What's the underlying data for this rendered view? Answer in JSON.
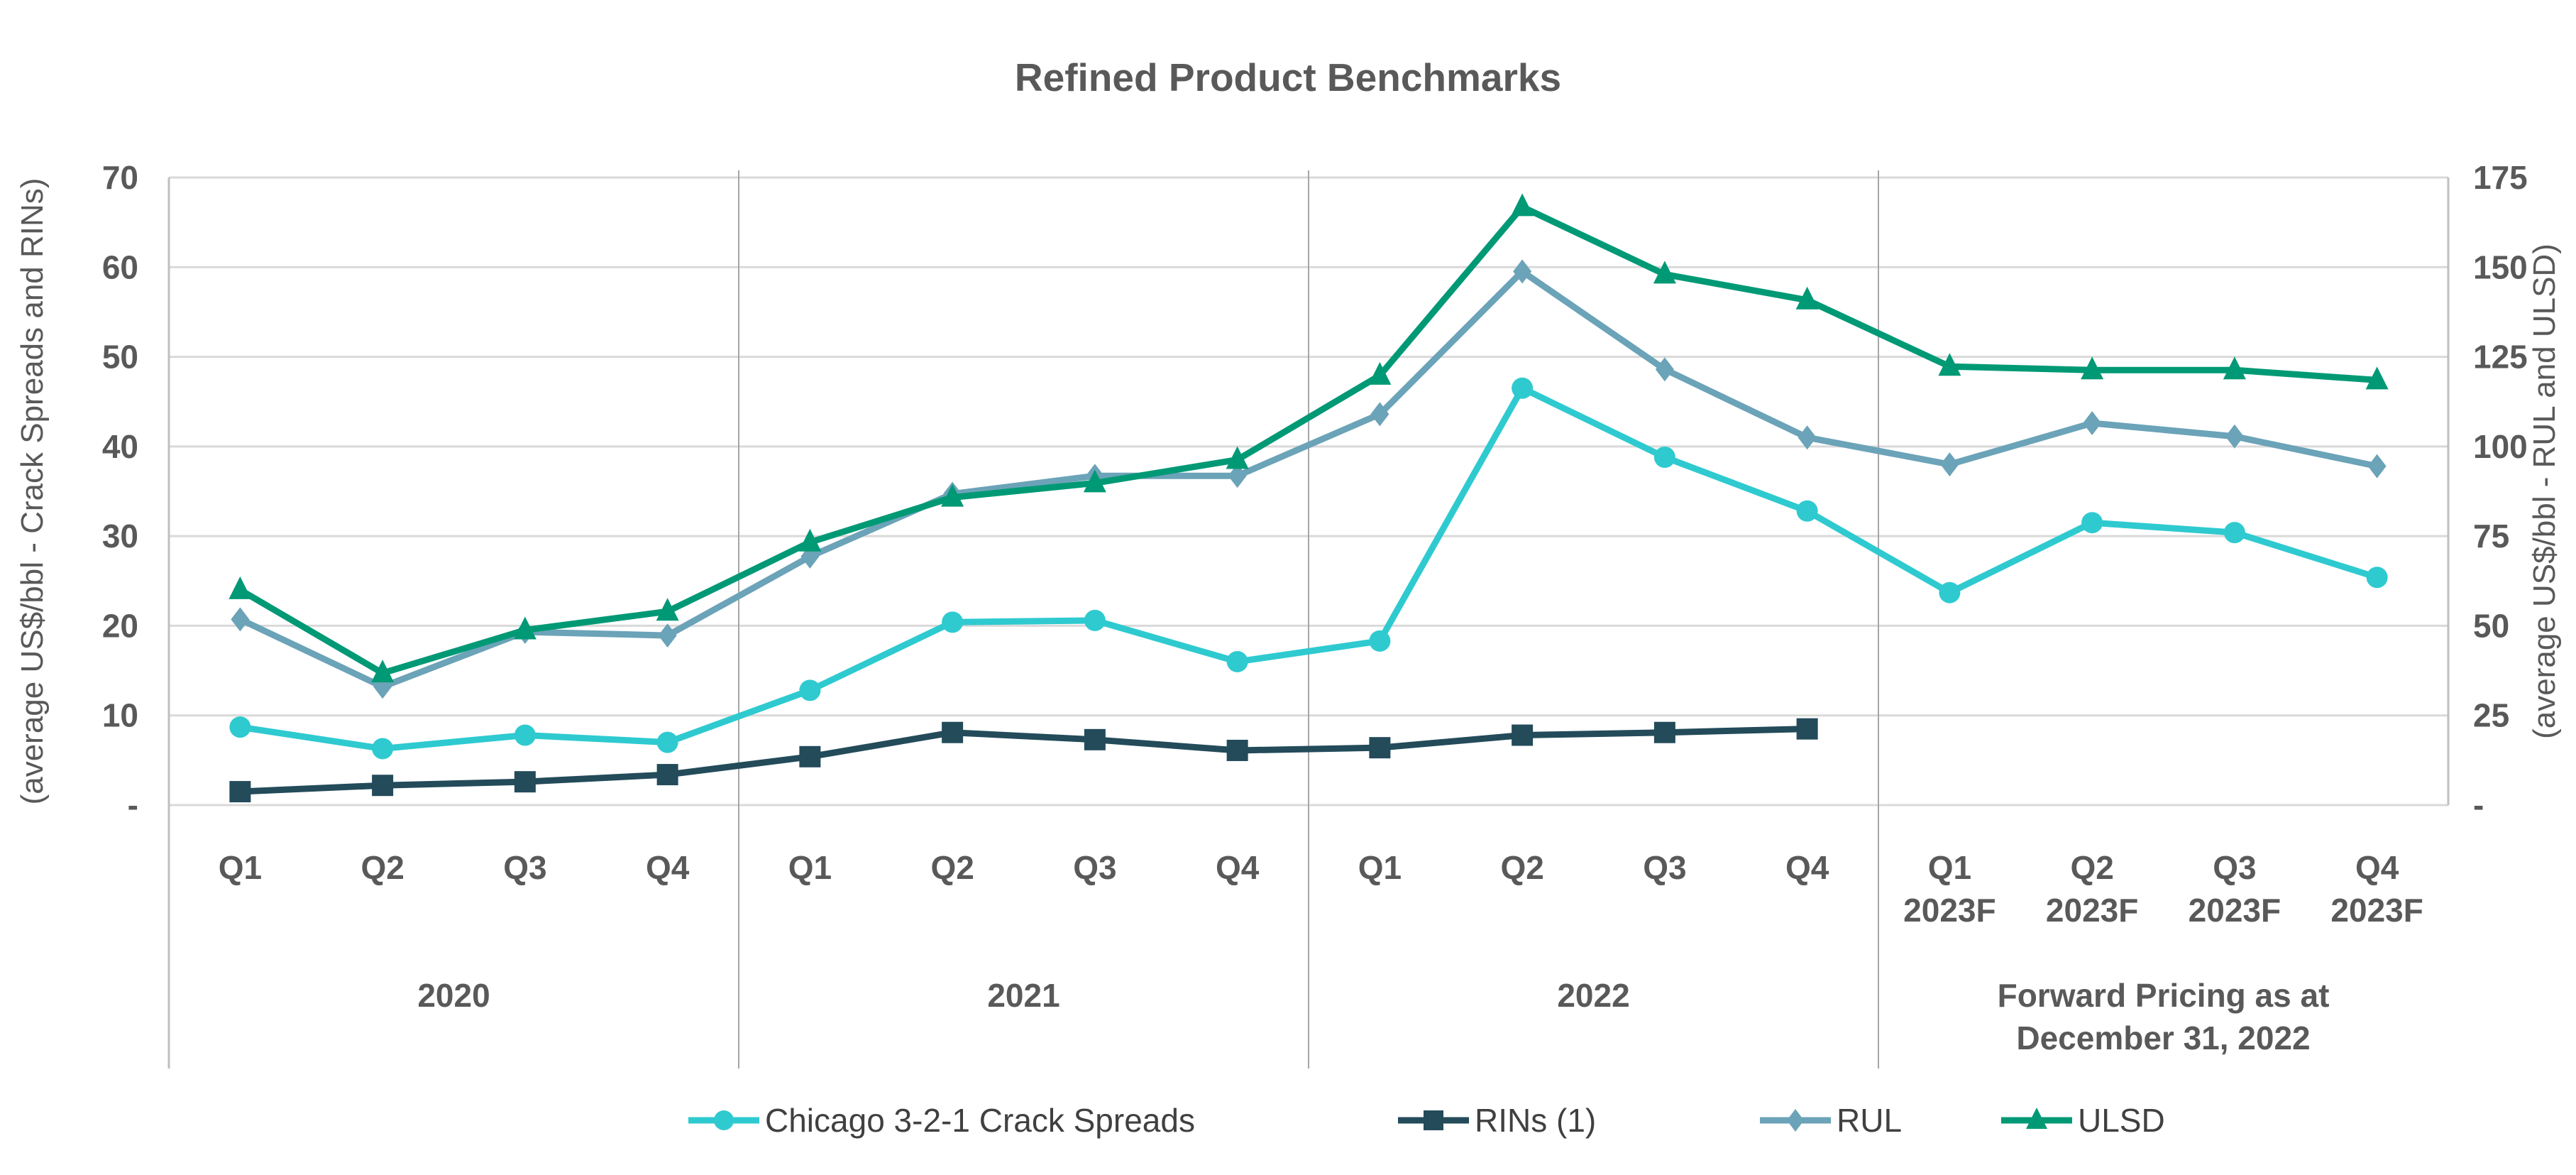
{
  "chart_data": {
    "type": "line",
    "title": "Refined Product Benchmarks",
    "ylabel_left": "(average US$/bbl - Crack Spreads and RINs)",
    "ylabel_right": "(average US$/bbl - RUL and ULSD)",
    "ylim_left": [
      0,
      70
    ],
    "ylim_right": [
      0,
      175
    ],
    "yticks_left": [
      "-",
      "10",
      "20",
      "30",
      "40",
      "50",
      "60",
      "70"
    ],
    "yticks_right": [
      "-",
      "25",
      "50",
      "75",
      "100",
      "125",
      "150",
      "175"
    ],
    "grid": true,
    "legend_position": "bottom",
    "categories": [
      {
        "quarter": "Q1",
        "sub": ""
      },
      {
        "quarter": "Q2",
        "sub": ""
      },
      {
        "quarter": "Q3",
        "sub": ""
      },
      {
        "quarter": "Q4",
        "sub": ""
      },
      {
        "quarter": "Q1",
        "sub": ""
      },
      {
        "quarter": "Q2",
        "sub": ""
      },
      {
        "quarter": "Q3",
        "sub": ""
      },
      {
        "quarter": "Q4",
        "sub": ""
      },
      {
        "quarter": "Q1",
        "sub": ""
      },
      {
        "quarter": "Q2",
        "sub": ""
      },
      {
        "quarter": "Q3",
        "sub": ""
      },
      {
        "quarter": "Q4",
        "sub": ""
      },
      {
        "quarter": "Q1",
        "sub": "2023F"
      },
      {
        "quarter": "Q2",
        "sub": "2023F"
      },
      {
        "quarter": "Q3",
        "sub": "2023F"
      },
      {
        "quarter": "Q4",
        "sub": "2023F"
      }
    ],
    "groups": [
      {
        "label": "2020",
        "label2": ""
      },
      {
        "label": "2021",
        "label2": ""
      },
      {
        "label": "2022",
        "label2": ""
      },
      {
        "label": "Forward Pricing as at",
        "label2": "December 31, 2022"
      }
    ],
    "series": [
      {
        "name": "Chicago 3-2-1 Crack Spreads",
        "axis": "left",
        "color": "#2ECAD0",
        "marker": "circle",
        "values": [
          8.7,
          6.3,
          7.8,
          7.0,
          12.8,
          20.4,
          20.6,
          16.0,
          18.3,
          46.5,
          38.8,
          32.8,
          23.7,
          31.5,
          30.4,
          25.4
        ]
      },
      {
        "name": "RINs (1)",
        "axis": "left",
        "color": "#234B5A",
        "marker": "square",
        "values": [
          1.5,
          2.2,
          2.6,
          3.4,
          5.4,
          8.1,
          7.3,
          6.1,
          6.4,
          7.8,
          8.1,
          8.5,
          null,
          null,
          null,
          null
        ]
      },
      {
        "name": "RUL",
        "axis": "right",
        "color": "#6BA3B8",
        "marker": "diamond",
        "values": [
          51.8,
          33.0,
          48.3,
          47.3,
          69.3,
          86.8,
          91.8,
          91.8,
          109.0,
          148.8,
          121.5,
          102.5,
          95.0,
          106.5,
          102.8,
          94.5
        ]
      },
      {
        "name": "ULSD",
        "axis": "right",
        "color": "#009975",
        "marker": "triangle",
        "values": [
          60.0,
          36.8,
          48.8,
          54.0,
          73.3,
          85.8,
          89.8,
          96.3,
          119.8,
          166.8,
          148.0,
          140.8,
          122.3,
          121.3,
          121.3,
          118.5
        ]
      }
    ]
  }
}
